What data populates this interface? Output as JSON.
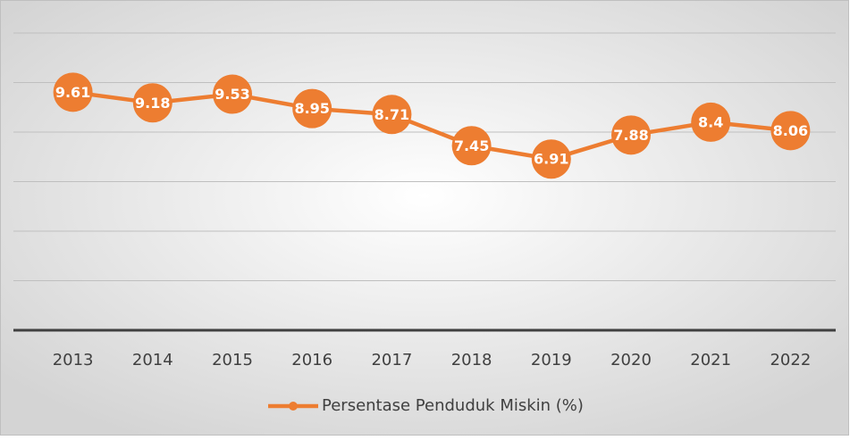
{
  "chart_data": {
    "type": "line",
    "categories": [
      "2013",
      "2014",
      "2015",
      "2016",
      "2017",
      "2018",
      "2019",
      "2020",
      "2021",
      "2022"
    ],
    "series": [
      {
        "name": "Persentase Penduduk Miskin (%)",
        "color": "#ED7D31",
        "values": [
          9.61,
          9.18,
          9.53,
          8.95,
          8.71,
          7.45,
          6.91,
          7.88,
          8.4,
          8.06
        ]
      }
    ],
    "ylim": [
      0,
      12
    ],
    "yticks": [
      0,
      2,
      4,
      6,
      8,
      10,
      12
    ],
    "grid": true,
    "legend": "bottom"
  }
}
